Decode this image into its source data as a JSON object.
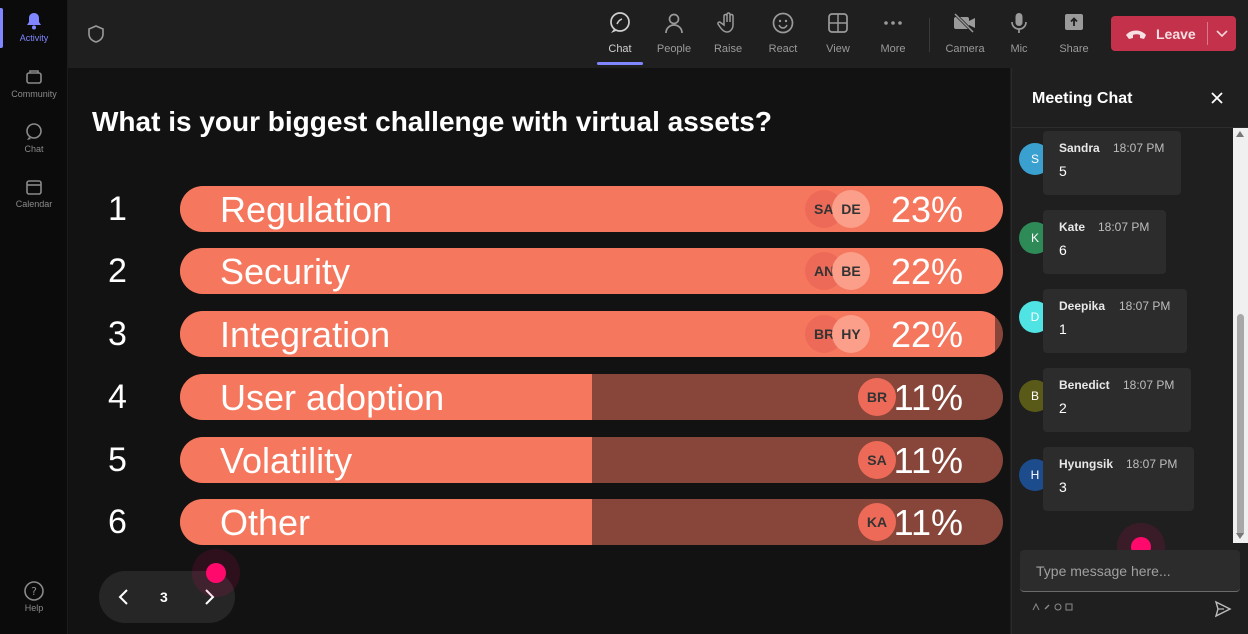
{
  "rail": {
    "items": [
      {
        "label": "Activity",
        "icon": "bell-icon"
      },
      {
        "label": "Community",
        "icon": "community-icon"
      },
      {
        "label": "Chat",
        "icon": "chat-icon"
      },
      {
        "label": "Calendar",
        "icon": "calendar-icon"
      }
    ],
    "help_label": "Help"
  },
  "toolbar": {
    "buttons": [
      {
        "label": "Chat",
        "icon": "chat-bubble-icon"
      },
      {
        "label": "People",
        "icon": "people-icon"
      },
      {
        "label": "Raise",
        "icon": "raise-hand-icon"
      },
      {
        "label": "React",
        "icon": "smile-icon"
      },
      {
        "label": "View",
        "icon": "grid-icon"
      },
      {
        "label": "More",
        "icon": "more-dots-icon"
      },
      {
        "label": "Camera",
        "icon": "camera-off-icon"
      },
      {
        "label": "Mic",
        "icon": "mic-icon"
      },
      {
        "label": "Share",
        "icon": "share-icon"
      }
    ],
    "leave_label": "Leave",
    "leave_color": "#c4314b",
    "active_accent": "#7f86ff"
  },
  "poll": {
    "question": "What is your biggest challenge with virtual assets?",
    "fill_color": "#f5775d",
    "track_color": "#874639",
    "options": [
      {
        "rank": "1",
        "label": "Regulation",
        "percent": "23%",
        "share": 1.0,
        "avatars": [
          "SA",
          "DE"
        ]
      },
      {
        "rank": "2",
        "label": "Security",
        "percent": "22%",
        "share": 1.0,
        "avatars": [
          "AN",
          "BE"
        ]
      },
      {
        "rank": "3",
        "label": "Integration",
        "percent": "22%",
        "share": 0.99,
        "avatars": [
          "BR",
          "HY"
        ]
      },
      {
        "rank": "4",
        "label": "User adoption",
        "percent": "11%",
        "share": 0.5,
        "avatars": [
          "BR"
        ]
      },
      {
        "rank": "5",
        "label": "Volatility",
        "percent": "11%",
        "share": 0.5,
        "avatars": [
          "SA"
        ]
      },
      {
        "rank": "6",
        "label": "Other",
        "percent": "11%",
        "share": 0.5,
        "avatars": [
          "KA"
        ]
      }
    ]
  },
  "pager": {
    "page": "3"
  },
  "chat": {
    "title": "Meeting Chat",
    "messages": [
      {
        "initial": "S",
        "name": "Sandra",
        "time": "18:07 PM",
        "text": "5",
        "color": "#3aa0d0"
      },
      {
        "initial": "K",
        "name": "Kate",
        "time": "18:07 PM",
        "text": "6",
        "color": "#2e8b57"
      },
      {
        "initial": "D",
        "name": "Deepika",
        "time": "18:07 PM",
        "text": "1",
        "color": "#4fe3e3"
      },
      {
        "initial": "B",
        "name": "Benedict",
        "time": "18:07 PM",
        "text": "2",
        "color": "#5a5a18"
      },
      {
        "initial": "H",
        "name": "Hyungsik",
        "time": "18:07 PM",
        "text": "3",
        "color": "#1d4c8c"
      }
    ],
    "input_placeholder": "Type message here..."
  }
}
